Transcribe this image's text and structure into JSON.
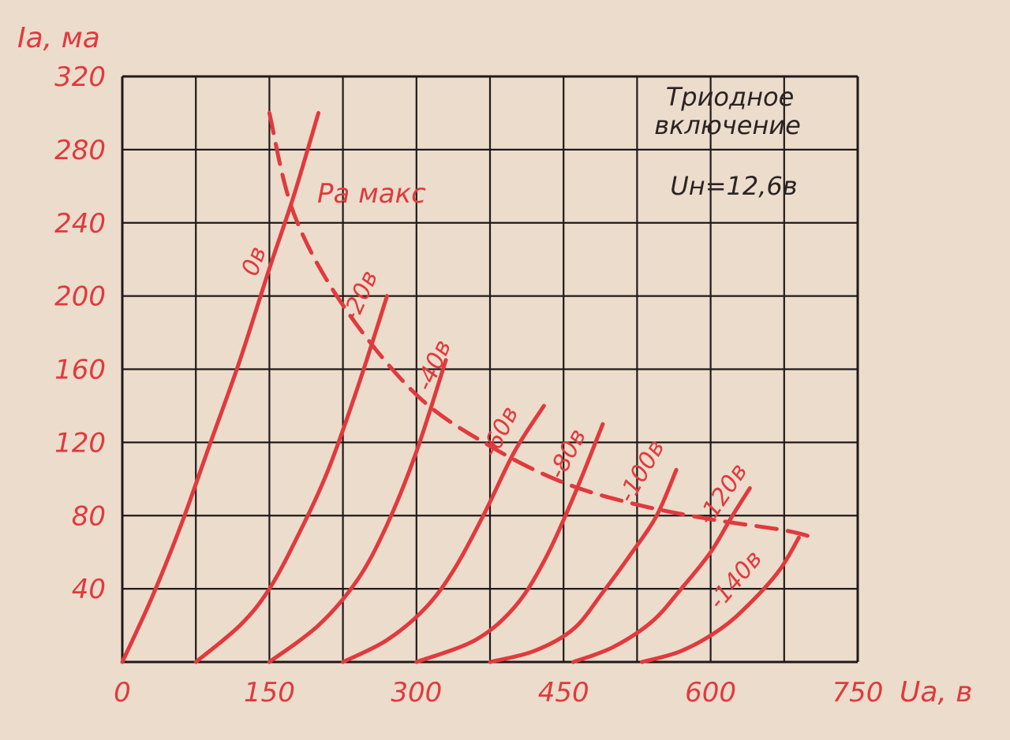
{
  "colors": {
    "background": "#ecdccb",
    "grid": "#1f1a1a",
    "curve": "#e03a3e",
    "dark_text": "#2a2424"
  },
  "chart_data": {
    "type": "line",
    "ylabel": "Ia, ма",
    "xlabel": "Ua, в",
    "xlim": [
      0,
      750
    ],
    "ylim": [
      0,
      320
    ],
    "x_ticks": [
      0,
      150,
      300,
      450,
      600,
      750
    ],
    "y_ticks": [
      40,
      80,
      120,
      160,
      200,
      240,
      280,
      320
    ],
    "x_tick_labels": [
      "0",
      "150",
      "300",
      "450",
      "600",
      "750"
    ],
    "y_tick_labels": [
      "40",
      "80",
      "120",
      "160",
      "200",
      "240",
      "280",
      "320"
    ],
    "grid": true,
    "annotations": {
      "mode_line1": "Триодное",
      "mode_line2": "включение",
      "heater": "Uн=12,6в",
      "pmax": "Pа макс"
    },
    "series": [
      {
        "name": "0в",
        "x": [
          0,
          30,
          60,
          90,
          120,
          150,
          175,
          200
        ],
        "y": [
          0,
          35,
          75,
          120,
          165,
          215,
          255,
          300
        ]
      },
      {
        "name": "-20в",
        "x": [
          75,
          120,
          150,
          180,
          210,
          240,
          270
        ],
        "y": [
          0,
          20,
          40,
          70,
          105,
          150,
          200
        ]
      },
      {
        "name": "-40в",
        "x": [
          150,
          200,
          240,
          270,
          300,
          330
        ],
        "y": [
          0,
          20,
          45,
          75,
          115,
          165
        ]
      },
      {
        "name": "-60в",
        "x": [
          225,
          270,
          310,
          340,
          370,
          400,
          430
        ],
        "y": [
          0,
          12,
          30,
          52,
          82,
          115,
          140
        ]
      },
      {
        "name": "-80в",
        "x": [
          300,
          360,
          400,
          430,
          460,
          490
        ],
        "y": [
          0,
          12,
          30,
          55,
          90,
          130
        ]
      },
      {
        "name": "-100в",
        "x": [
          375,
          420,
          460,
          490,
          520,
          545,
          565
        ],
        "y": [
          0,
          6,
          18,
          38,
          60,
          80,
          105
        ]
      },
      {
        "name": "-120в",
        "x": [
          460,
          500,
          540,
          570,
          600,
          620,
          640
        ],
        "y": [
          0,
          8,
          22,
          40,
          60,
          78,
          95
        ]
      },
      {
        "name": "-140в",
        "x": [
          530,
          570,
          610,
          640,
          670,
          690
        ],
        "y": [
          0,
          6,
          18,
          32,
          50,
          68
        ]
      },
      {
        "name": "Pа макс",
        "x": [
          150,
          175,
          225,
          300,
          375,
          450,
          525,
          600,
          675,
          705
        ],
        "y": [
          300,
          245,
          195,
          146,
          118,
          98,
          86,
          78,
          72,
          68
        ]
      }
    ]
  }
}
